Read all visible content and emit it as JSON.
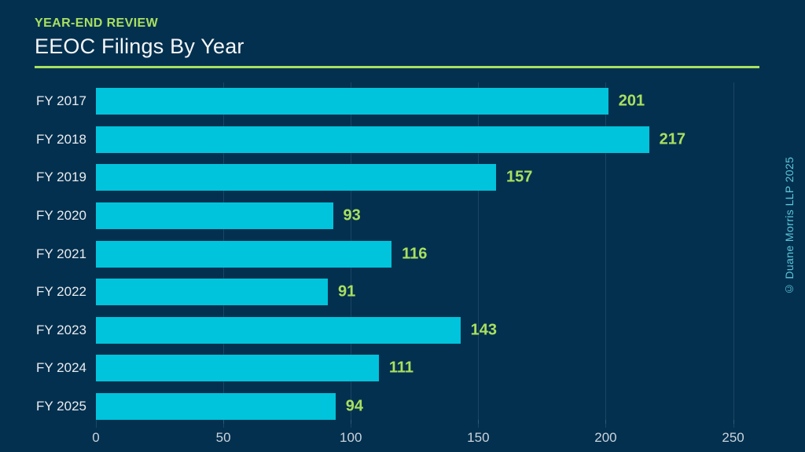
{
  "header": {
    "eyebrow": "YEAR-END REVIEW",
    "title": "EEOC Filings By Year"
  },
  "footer": {
    "copyright": "© Duane Morris LLP 2025"
  },
  "colors": {
    "background": "#04304f",
    "bar": "#00c4dc",
    "accent": "#a8e060",
    "title_text": "#f4f6f7",
    "category_text": "#e8ecef",
    "axis_text": "#cad4dc",
    "copyright_text": "#5bc7da",
    "gridline": "rgba(150,185,210,0.16)"
  },
  "chart_data": {
    "type": "bar",
    "orientation": "horizontal",
    "title": "EEOC Filings By Year",
    "categories": [
      "FY 2017",
      "FY 2018",
      "FY 2019",
      "FY 2020",
      "FY 2021",
      "FY 2022",
      "FY 2023",
      "FY 2024",
      "FY 2025"
    ],
    "values": [
      201,
      217,
      157,
      93,
      116,
      91,
      143,
      111,
      94
    ],
    "xlabel": "",
    "ylabel": "",
    "xlim": [
      0,
      260
    ],
    "xticks": [
      0,
      50,
      100,
      150,
      200,
      250
    ],
    "grid": true,
    "legend": false,
    "value_labels": "outside-end"
  }
}
